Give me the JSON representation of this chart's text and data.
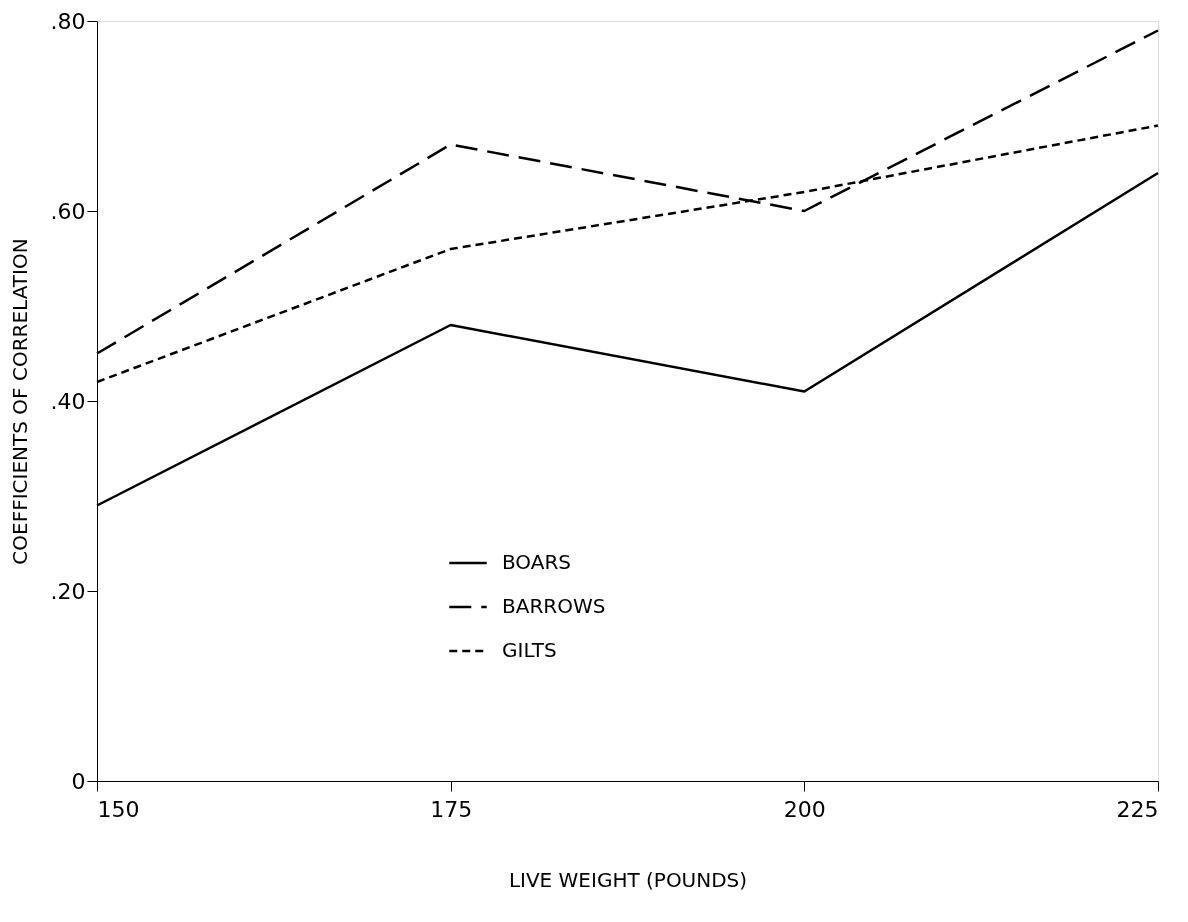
{
  "chart_data": {
    "type": "line",
    "xlabel": "LIVE WEIGHT (POUNDS)",
    "ylabel": "COEFFICIENTS OF CORRELATION",
    "x": [
      150,
      175,
      200,
      225
    ],
    "series": [
      {
        "name": "BOARS",
        "color": "#000000",
        "line_style": "solid",
        "values": [
          0.29,
          0.48,
          0.41,
          0.64
        ]
      },
      {
        "name": "BARROWS",
        "color": "#000000",
        "line_style": "dashed",
        "values": [
          0.45,
          0.67,
          0.6,
          0.79
        ]
      },
      {
        "name": "GILTS",
        "color": "#000000",
        "line_style": "dotted",
        "values": [
          0.42,
          0.56,
          0.62,
          0.69
        ]
      }
    ],
    "xlim": [
      150,
      225
    ],
    "xticks": [
      150,
      175,
      200,
      225
    ],
    "ylim": [
      0,
      0.8
    ],
    "yticks": [
      {
        "value": 0,
        "label": "0"
      },
      {
        "value": 0.2,
        "label": ".20"
      },
      {
        "value": 0.4,
        "label": ".40"
      },
      {
        "value": 0.6,
        "label": ".60"
      },
      {
        "value": 0.8,
        "label": ".80"
      }
    ],
    "grid": false,
    "legend": "bottom",
    "marker": "none"
  }
}
